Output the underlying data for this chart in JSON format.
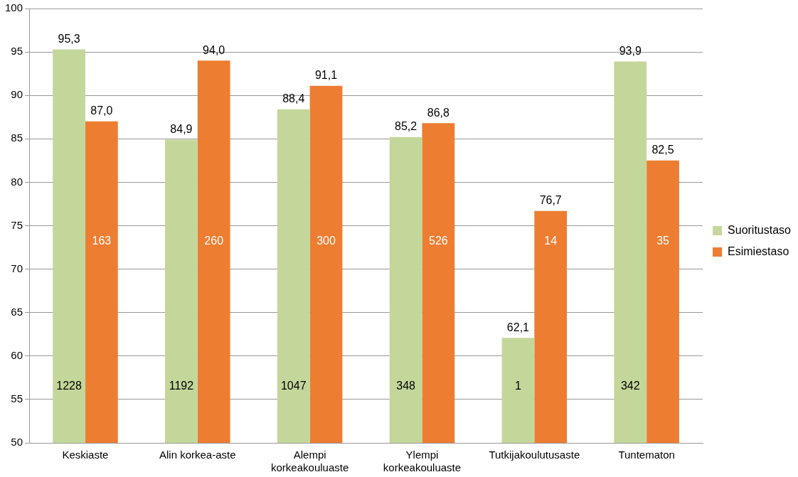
{
  "chart_data": {
    "type": "bar",
    "categories": [
      "Keskiaste",
      "Alin korkea-aste",
      "Alempi korkeakouluaste",
      "Ylempi korkeakouluaste",
      "Tutkijakoulutusaste",
      "Tuntematon"
    ],
    "series": [
      {
        "name": "Suoritustaso",
        "color": "#c4d79b",
        "values": [
          95.3,
          84.9,
          88.4,
          85.2,
          62.1,
          93.9
        ],
        "value_labels": [
          "95,3",
          "84,9",
          "88,4",
          "85,2",
          "62,1",
          "93,9"
        ]
      },
      {
        "name": "Esimiestaso",
        "color": "#ed7d31",
        "values": [
          87.0,
          94.0,
          91.1,
          86.8,
          76.7,
          82.5
        ],
        "value_labels": [
          "87,0",
          "94,0",
          "91,1",
          "86,8",
          "76,7",
          "82,5"
        ]
      }
    ],
    "ylim": [
      50,
      100
    ],
    "yticks": [
      50,
      55,
      60,
      65,
      70,
      75,
      80,
      85,
      90,
      95,
      100
    ],
    "grid": "y",
    "legend": "right",
    "annotations": [
      {
        "text": "1228",
        "x": "Keskiaste",
        "y": 56.5
      },
      {
        "text": "163",
        "x": "Keskiaste",
        "y": 73.2
      },
      {
        "text": "1192",
        "x": "Alin korkea-aste",
        "y": 56.5
      },
      {
        "text": "260",
        "x": "Alin korkea-aste",
        "y": 73.2
      },
      {
        "text": "1047",
        "x": "Alempi korkeakouluaste",
        "y": 56.5
      },
      {
        "text": "300",
        "x": "Alempi korkeakouluaste",
        "y": 73.2
      },
      {
        "text": "348",
        "x": "Ylempi korkeakouluaste",
        "y": 56.5
      },
      {
        "text": "526",
        "x": "Ylempi korkeakouluaste",
        "y": 73.2
      },
      {
        "text": "1",
        "x": "Tutkijakoulutusaste",
        "y": 56.5
      },
      {
        "text": "14",
        "x": "Tutkijakoulutusaste",
        "y": 73.2
      },
      {
        "text": "342",
        "x": "Tuntematon",
        "y": 56.5
      },
      {
        "text": "35",
        "x": "Tuntematon",
        "y": 73.2
      }
    ]
  }
}
